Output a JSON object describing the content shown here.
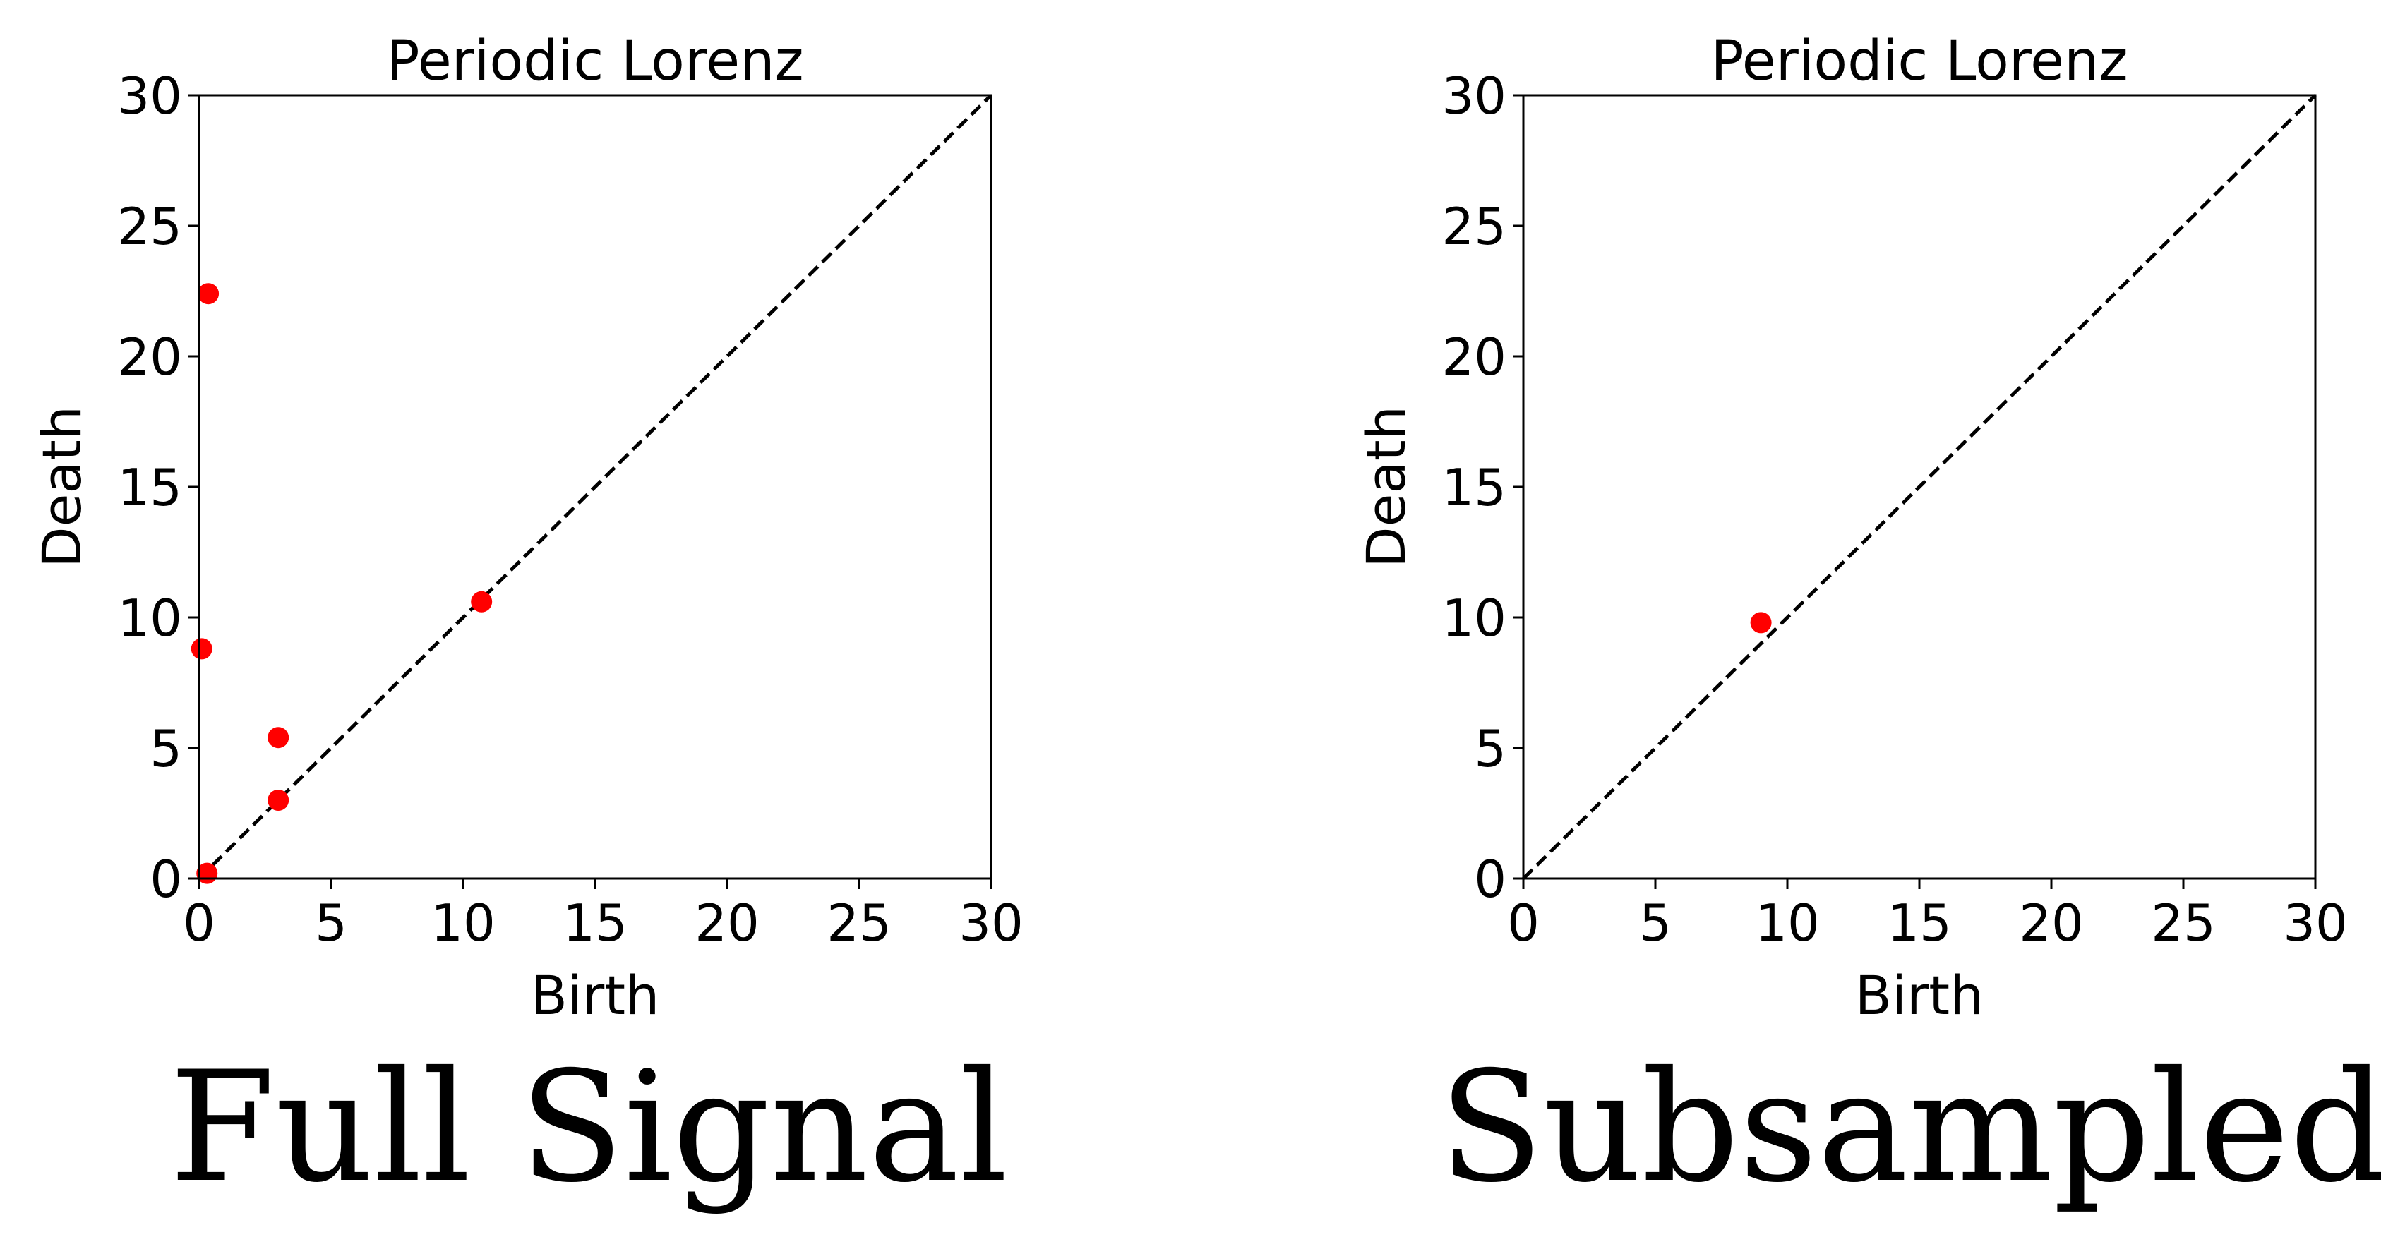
{
  "chart_data": [
    {
      "type": "scatter",
      "title": "Periodic Lorenz",
      "xlabel": "Birth",
      "ylabel": "Death",
      "xlim": [
        0,
        30
      ],
      "ylim": [
        0,
        30
      ],
      "xticks": [
        "0",
        "5",
        "10",
        "15",
        "20",
        "25",
        "30"
      ],
      "yticks": [
        "0",
        "5",
        "10",
        "15",
        "20",
        "25",
        "30"
      ],
      "diagonal": true,
      "grid": false,
      "point_color": "#ff0000",
      "points": [
        {
          "x": 0.35,
          "y": 22.4
        },
        {
          "x": 0.1,
          "y": 8.8
        },
        {
          "x": 3.0,
          "y": 5.4
        },
        {
          "x": 3.0,
          "y": 3.0
        },
        {
          "x": 0.3,
          "y": 0.2
        },
        {
          "x": 10.7,
          "y": 10.6
        }
      ]
    },
    {
      "type": "scatter",
      "title": "Periodic Lorenz",
      "xlabel": "Birth",
      "ylabel": "Death",
      "xlim": [
        0,
        30
      ],
      "ylim": [
        0,
        30
      ],
      "xticks": [
        "0",
        "5",
        "10",
        "15",
        "20",
        "25",
        "30"
      ],
      "yticks": [
        "0",
        "5",
        "10",
        "15",
        "20",
        "25",
        "30"
      ],
      "diagonal": true,
      "grid": false,
      "point_color": "#ff0000",
      "points": [
        {
          "x": 9.0,
          "y": 9.8
        }
      ]
    }
  ],
  "captions": {
    "left": "Full Signal",
    "right": "Subsampled"
  }
}
